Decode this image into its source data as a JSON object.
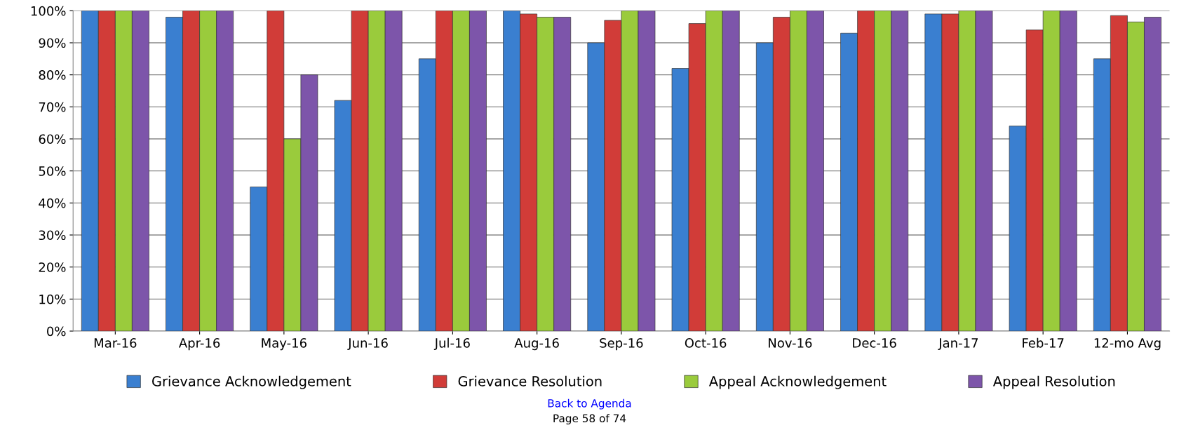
{
  "chart_data": {
    "type": "bar",
    "categories": [
      "Mar-16",
      "Apr-16",
      "May-16",
      "Jun-16",
      "Jul-16",
      "Aug-16",
      "Sep-16",
      "Oct-16",
      "Nov-16",
      "Dec-16",
      "Jan-17",
      "Feb-17",
      "12-mo Avg"
    ],
    "series": [
      {
        "name": "Grievance Acknowledgement",
        "color": "#3a7fd0",
        "values": [
          100,
          98,
          45,
          72,
          85,
          100,
          90,
          82,
          90,
          93,
          99,
          64,
          85
        ]
      },
      {
        "name": "Grievance Resolution",
        "color": "#d13c38",
        "values": [
          100,
          100,
          100,
          100,
          100,
          99,
          97,
          96,
          98,
          100,
          99,
          94,
          98.5
        ]
      },
      {
        "name": "Appeal Acknowledgement",
        "color": "#9acb3c",
        "values": [
          100,
          100,
          60,
          100,
          100,
          98,
          100,
          100,
          100,
          100,
          100,
          100,
          96.5
        ]
      },
      {
        "name": "Appeal Resolution",
        "color": "#7d55aa",
        "values": [
          100,
          100,
          80,
          100,
          100,
          98,
          100,
          100,
          100,
          100,
          100,
          100,
          98
        ]
      }
    ],
    "ylim": [
      0,
      100
    ],
    "yticks": [
      {
        "value": 0,
        "label": "0%"
      },
      {
        "value": 10,
        "label": "10%"
      },
      {
        "value": 20,
        "label": "20%"
      },
      {
        "value": 30,
        "label": "30%"
      },
      {
        "value": 40,
        "label": "40%"
      },
      {
        "value": 50,
        "label": "50%"
      },
      {
        "value": 60,
        "label": "60%"
      },
      {
        "value": 70,
        "label": "70%"
      },
      {
        "value": 80,
        "label": "80%"
      },
      {
        "value": 90,
        "label": "90%"
      },
      {
        "value": 100,
        "label": "100%"
      }
    ],
    "grid": "y",
    "legend": "bottom",
    "annotations": [
      "Back to Agenda",
      "Page 58 of 74"
    ]
  }
}
